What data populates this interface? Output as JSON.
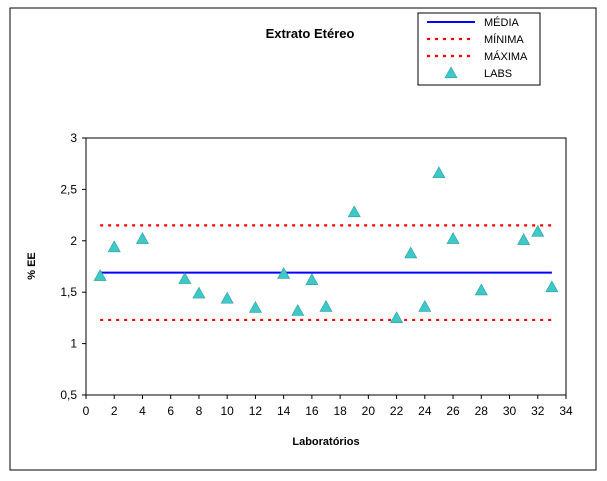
{
  "chart_data": {
    "type": "scatter",
    "title": "Extrato Etéreo",
    "xlabel": "Laboratórios",
    "ylabel": "% EE",
    "xlim": [
      0,
      34
    ],
    "ylim": [
      0.5,
      3
    ],
    "x_ticks": [
      "0",
      "2",
      "4",
      "6",
      "8",
      "10",
      "12",
      "14",
      "16",
      "18",
      "20",
      "22",
      "24",
      "26",
      "28",
      "30",
      "32",
      "34"
    ],
    "y_ticks": [
      "0,5",
      "1",
      "1,5",
      "2",
      "2,5",
      "3"
    ],
    "legend_position": "top-right",
    "series": [
      {
        "name": "MÉDIA",
        "kind": "line",
        "style": "solid",
        "color": "#0000ff",
        "x": [
          1,
          33
        ],
        "y": [
          1.69,
          1.69
        ]
      },
      {
        "name": "MÍNIMA",
        "kind": "line",
        "style": "dotted",
        "color": "#ff0000",
        "x": [
          1,
          33
        ],
        "y": [
          1.23,
          1.23
        ]
      },
      {
        "name": "MÁXIMA",
        "kind": "line",
        "style": "dotted",
        "color": "#ff0000",
        "x": [
          1,
          33
        ],
        "y": [
          2.15,
          2.15
        ]
      },
      {
        "name": "LABS",
        "kind": "marker",
        "marker": "triangle",
        "color": "#3fc8c8",
        "x": [
          1,
          2,
          4,
          7,
          8,
          10,
          12,
          14,
          15,
          16,
          17,
          19,
          22,
          23,
          24,
          25,
          26,
          28,
          31,
          32,
          33
        ],
        "y": [
          1.66,
          1.94,
          2.02,
          1.63,
          1.49,
          1.44,
          1.35,
          1.68,
          1.32,
          1.62,
          1.36,
          2.28,
          1.25,
          1.88,
          1.36,
          2.66,
          2.02,
          1.52,
          2.01,
          2.09,
          1.55
        ]
      }
    ]
  }
}
